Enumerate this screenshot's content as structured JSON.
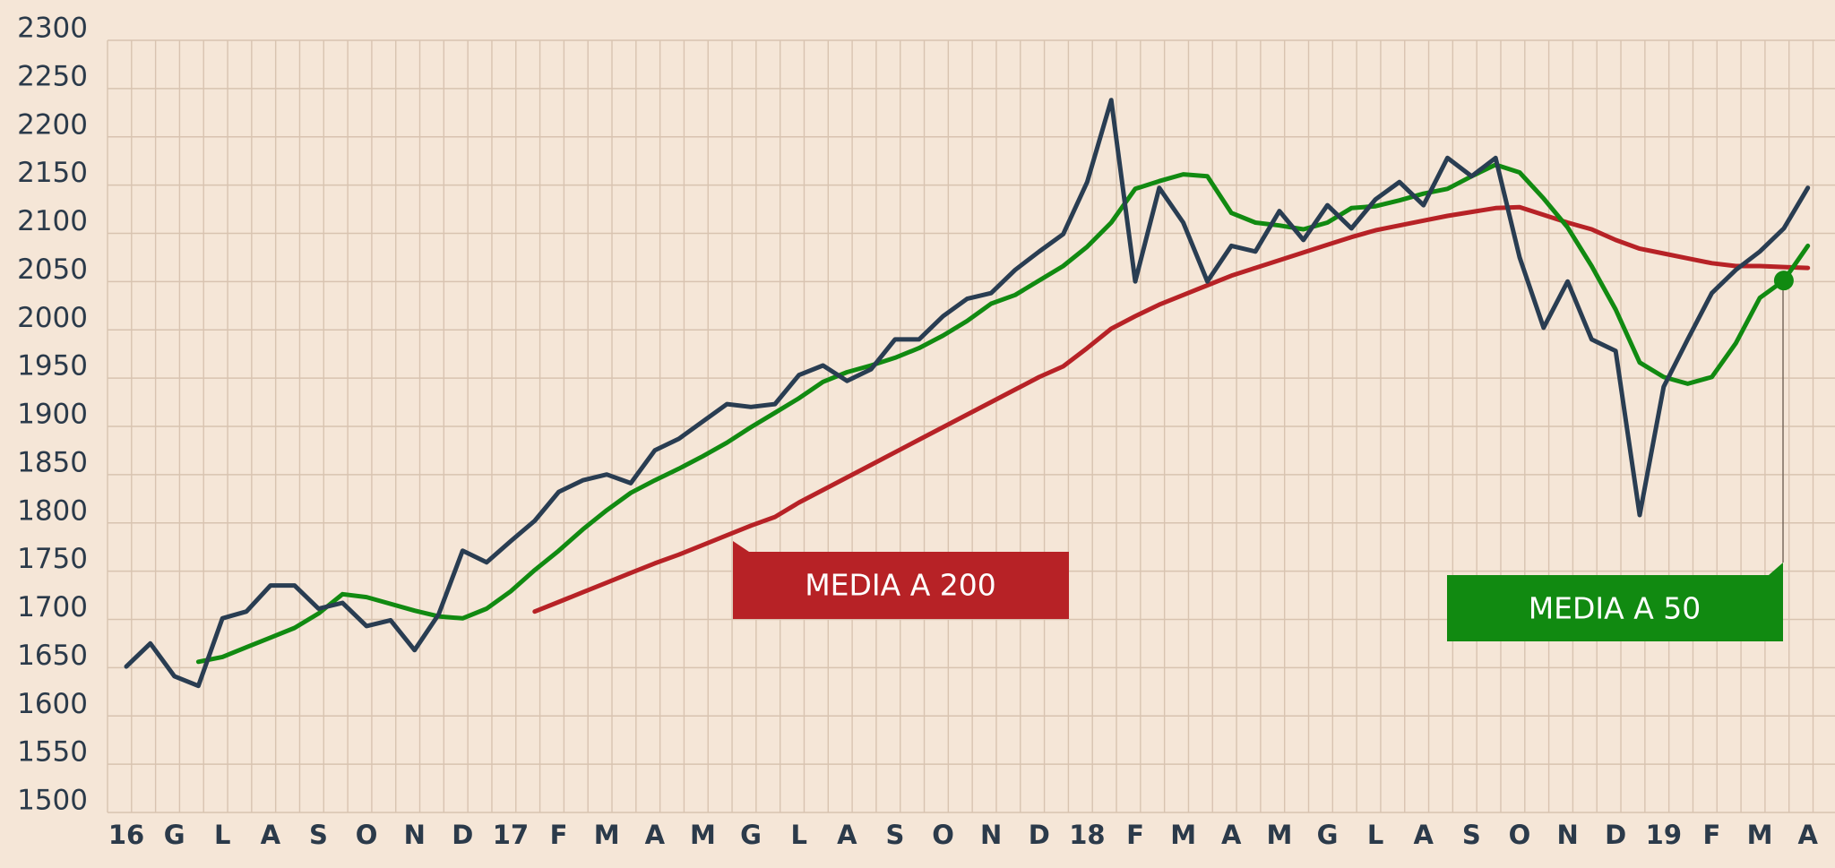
{
  "chart_data": {
    "type": "line",
    "categories": [
      "16",
      null,
      "G",
      null,
      "L",
      null,
      "A",
      null,
      "S",
      null,
      "O",
      null,
      "N",
      null,
      "D",
      null,
      "17",
      null,
      "F",
      null,
      "M",
      null,
      "A",
      null,
      "M",
      null,
      "G",
      null,
      "L",
      null,
      "A",
      null,
      "S",
      null,
      "O",
      null,
      "N",
      null,
      "D",
      null,
      "18",
      null,
      "F",
      null,
      "M",
      null,
      "A",
      null,
      "M",
      null,
      "G",
      null,
      "L",
      null,
      "A",
      null,
      "S",
      null,
      "O",
      null,
      "N",
      null,
      "D",
      null,
      "19",
      null,
      "F",
      null,
      "M",
      null,
      "A"
    ],
    "series": [
      {
        "color": "#293d52",
        "values": [
          1640,
          1664,
          1630,
          1620,
          1690,
          1697,
          1724,
          1724,
          1700,
          1706,
          1682,
          1688,
          1657,
          1694,
          1760,
          1748,
          1770,
          1791,
          1821,
          1833,
          1839,
          1830,
          1864,
          1876,
          1894,
          1912,
          1909,
          1912,
          1942,
          1952,
          1936,
          1948,
          1979,
          1979,
          2003,
          2021,
          2027,
          2051,
          2070,
          2088,
          2142,
          2227,
          2039,
          2136,
          2100,
          2039,
          2076,
          2070,
          2112,
          2082,
          2118,
          2094,
          2124,
          2142,
          2118,
          2167,
          2148,
          2167,
          2064,
          1991,
          2039,
          1979,
          1967,
          1797,
          1930,
          1979,
          2027,
          2051,
          2070,
          2094,
          2136
        ]
      },
      {
        "name": "MEDIA A 50",
        "color": "#118a11",
        "values": [
          null,
          null,
          null,
          1645,
          1650,
          1660,
          1670,
          1680,
          1695,
          1715,
          1712,
          1705,
          1698,
          1692,
          1690,
          1700,
          1718,
          1740,
          1760,
          1782,
          1802,
          1820,
          1833,
          1845,
          1858,
          1872,
          1888,
          1903,
          1918,
          1935,
          1945,
          1952,
          1960,
          1970,
          1983,
          1998,
          2016,
          2025,
          2040,
          2055,
          2075,
          2100,
          2135,
          2143,
          2150,
          2148,
          2110,
          2100,
          2097,
          2093,
          2100,
          2115,
          2117,
          2123,
          2130,
          2135,
          2148,
          2160,
          2152,
          2125,
          2095,
          2055,
          2010,
          1955,
          1940,
          1933,
          1940,
          1975,
          2022,
          2040,
          2076
        ]
      },
      {
        "name": "MEDIA A 200",
        "color": "#b72226",
        "values": [
          null,
          null,
          null,
          null,
          null,
          null,
          null,
          null,
          null,
          null,
          null,
          null,
          null,
          null,
          null,
          null,
          null,
          1697,
          1707,
          1717,
          1727,
          1737,
          1747,
          1756,
          1766,
          1776,
          1786,
          1795,
          1810,
          1823,
          1836,
          1849,
          1862,
          1875,
          1888,
          1901,
          1914,
          1927,
          1940,
          1951,
          1970,
          1990,
          2003,
          2015,
          2025,
          2035,
          2045,
          2053,
          2061,
          2069,
          2077,
          2085,
          2092,
          2097,
          2102,
          2107,
          2111,
          2115,
          2116,
          2108,
          2100,
          2093,
          2082,
          2073,
          2068,
          2063,
          2058,
          2055,
          2055,
          2054,
          2053
        ]
      }
    ],
    "ylim": [
      1500,
      2300
    ],
    "yticks": [
      1500,
      1550,
      1600,
      1650,
      1700,
      1750,
      1800,
      1850,
      1900,
      1950,
      2000,
      2050,
      2100,
      2150,
      2200,
      2250,
      2300
    ],
    "grid": true
  }
}
